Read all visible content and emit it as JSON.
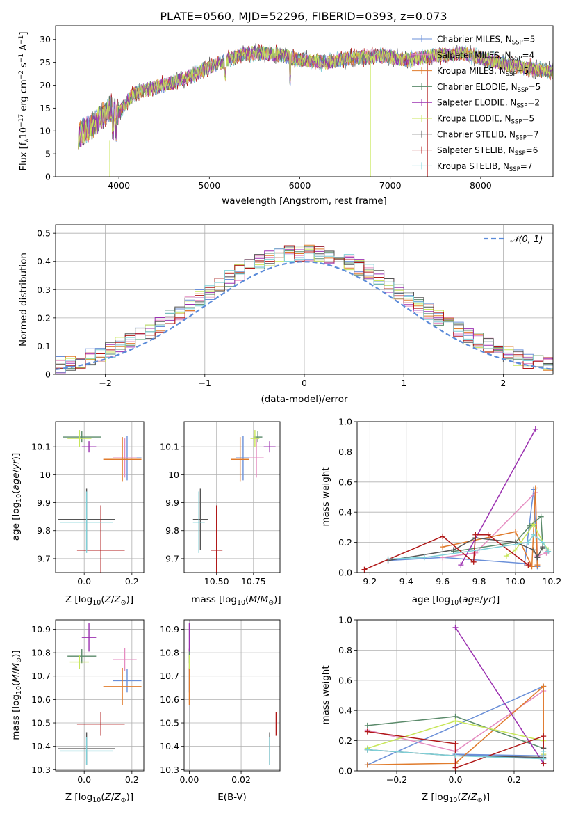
{
  "title": "PLATE=0560, MJD=52296, FIBERID=0393, z=0.073",
  "models": [
    {
      "name": "Chabrier MILES",
      "nssp": "5",
      "color": "#6a8fd8"
    },
    {
      "name": "Salpeter MILES",
      "nssp": "4",
      "color": "#e58bc0"
    },
    {
      "name": "Kroupa MILES",
      "nssp": "5",
      "color": "#e07b2c"
    },
    {
      "name": "Chabrier ELODIE",
      "nssp": "5",
      "color": "#5a8a6a"
    },
    {
      "name": "Salpeter ELODIE",
      "nssp": "2",
      "color": "#9b30b0"
    },
    {
      "name": "Kroupa ELODIE",
      "nssp": "5",
      "color": "#c8e65a"
    },
    {
      "name": "Chabrier STELIB",
      "nssp": "7",
      "color": "#555555"
    },
    {
      "name": "Salpeter STELIB",
      "nssp": "6",
      "color": "#b01818"
    },
    {
      "name": "Kroupa STELIB",
      "nssp": "7",
      "color": "#7fd0d8"
    }
  ],
  "chart_data": [
    {
      "id": "spectrum",
      "type": "line",
      "xlabel": "wavelength [Angstrom, rest frame]",
      "ylabel": "Flux [f_λ 10^-17 erg cm^-2 s^-1 A^-1]",
      "xlim": [
        3300,
        8800
      ],
      "ylim": [
        0,
        33
      ],
      "xticks": [
        4000,
        5000,
        6000,
        7000,
        8000
      ],
      "yticks": [
        0,
        5,
        10,
        15,
        20,
        25,
        30
      ],
      "grid": false,
      "continuum_x": [
        3550,
        3700,
        3900,
        4000,
        4150,
        4300,
        4500,
        4800,
        5000,
        5200,
        5400,
        5600,
        5800,
        6000,
        6300,
        6600,
        6900,
        7200,
        7500,
        7800,
        8100,
        8400,
        8800
      ],
      "continuum_y": [
        9,
        11,
        15,
        14,
        18,
        19,
        20,
        22,
        24,
        25.5,
        27,
        27,
        26.5,
        25.5,
        25,
        26,
        26.5,
        25.5,
        26.5,
        27,
        25.5,
        24,
        23
      ],
      "legend": "upper right"
    },
    {
      "id": "residuals",
      "type": "histogram",
      "xlabel": "(data-model)/error",
      "ylabel": "Normed distribution",
      "xlim": [
        -2.5,
        2.5
      ],
      "ylim": [
        0,
        0.53
      ],
      "xticks": [
        -2,
        -1,
        0,
        1,
        2
      ],
      "yticks": [
        0,
        0.1,
        0.2,
        0.3,
        0.4,
        0.5
      ],
      "grid": true,
      "reference": "N(0,1)",
      "legend": "upper right",
      "bin_width": 0.1
    },
    {
      "id": "age_vs_Z",
      "type": "errorbar",
      "xlabel": "Z [log10(Z/Z_sun)]",
      "ylabel": "age  [log10(age/yr)]",
      "xlim": [
        -0.12,
        0.25
      ],
      "ylim": [
        9.65,
        10.19
      ],
      "xticks": [
        0.0,
        0.2
      ],
      "xticklabels": [
        "0.0",
        "0.2"
      ],
      "yticks": [
        9.7,
        9.8,
        9.9,
        10.0,
        10.1
      ],
      "grid": true,
      "points": [
        {
          "model": 0,
          "x": 0.18,
          "y": 10.06,
          "xerr": 0.06,
          "yerr": 0.08
        },
        {
          "model": 1,
          "x": 0.17,
          "y": 10.06,
          "xerr": 0.05,
          "yerr": 0.07
        },
        {
          "model": 2,
          "x": 0.16,
          "y": 10.055,
          "xerr": 0.08,
          "yerr": 0.08
        },
        {
          "model": 3,
          "x": -0.01,
          "y": 10.135,
          "xerr": 0.08,
          "yerr": 0.02
        },
        {
          "model": 4,
          "x": 0.02,
          "y": 10.1,
          "xerr": 0.03,
          "yerr": 0.02
        },
        {
          "model": 5,
          "x": -0.02,
          "y": 10.13,
          "xerr": 0.05,
          "yerr": 0.03
        },
        {
          "model": 6,
          "x": 0.01,
          "y": 9.84,
          "xerr": 0.12,
          "yerr": 0.11
        },
        {
          "model": 7,
          "x": 0.07,
          "y": 9.73,
          "xerr": 0.1,
          "yerr": 0.16
        },
        {
          "model": 8,
          "x": 0.01,
          "y": 9.83,
          "xerr": 0.11,
          "yerr": 0.11
        }
      ]
    },
    {
      "id": "age_vs_mass",
      "type": "errorbar",
      "xlabel": "mass [log10(M/M_sun)]",
      "ylabel": "",
      "xlim": [
        10.28,
        10.93
      ],
      "ylim": [
        9.65,
        10.19
      ],
      "xticks": [
        10.5,
        10.75
      ],
      "xticklabels": [
        "10.50",
        "10.75"
      ],
      "yticks": [
        9.7,
        9.8,
        9.9,
        10.0,
        10.1
      ],
      "grid": true,
      "points": [
        {
          "model": 0,
          "x": 10.68,
          "y": 10.06,
          "xerr": 0.05,
          "yerr": 0.08
        },
        {
          "model": 1,
          "x": 10.77,
          "y": 10.06,
          "xerr": 0.05,
          "yerr": 0.07
        },
        {
          "model": 2,
          "x": 10.66,
          "y": 10.055,
          "xerr": 0.06,
          "yerr": 0.08
        },
        {
          "model": 3,
          "x": 10.78,
          "y": 10.135,
          "xerr": 0.03,
          "yerr": 0.02
        },
        {
          "model": 4,
          "x": 10.86,
          "y": 10.1,
          "xerr": 0.04,
          "yerr": 0.02
        },
        {
          "model": 5,
          "x": 10.76,
          "y": 10.13,
          "xerr": 0.03,
          "yerr": 0.03
        },
        {
          "model": 6,
          "x": 10.39,
          "y": 9.84,
          "xerr": 0.05,
          "yerr": 0.11
        },
        {
          "model": 7,
          "x": 10.5,
          "y": 9.73,
          "xerr": 0.04,
          "yerr": 0.16
        },
        {
          "model": 8,
          "x": 10.38,
          "y": 9.83,
          "xerr": 0.04,
          "yerr": 0.11
        }
      ]
    },
    {
      "id": "weight_vs_age",
      "type": "line",
      "xlabel": "age  [log10(age/yr)]",
      "ylabel": "mass weight",
      "xlim": [
        9.13,
        10.21
      ],
      "ylim": [
        0,
        1
      ],
      "xticks": [
        9.2,
        9.4,
        9.6,
        9.8,
        10.0,
        10.2
      ],
      "xticklabels": [
        "9.2",
        "9.4",
        "9.6",
        "9.8",
        "10.0",
        "10.2"
      ],
      "yticks": [
        0,
        0.2,
        0.4,
        0.6,
        0.8,
        1.0
      ],
      "yticklabels": [
        "0.0",
        "0.2",
        "0.4",
        "0.6",
        "0.8",
        "1.0"
      ],
      "grid": true,
      "series": [
        {
          "model": 0,
          "x": [
            9.3,
            9.6,
            10.05,
            10.1,
            10.12
          ],
          "y": [
            0.08,
            0.1,
            0.06,
            0.55,
            0.04
          ]
        },
        {
          "model": 1,
          "x": [
            9.6,
            9.78,
            10.11,
            10.12,
            10.17
          ],
          "y": [
            0.1,
            0.13,
            0.53,
            0.11,
            0.13
          ]
        },
        {
          "model": 2,
          "x": [
            9.6,
            10.0,
            10.09,
            10.11,
            10.12
          ],
          "y": [
            0.17,
            0.27,
            0.04,
            0.56,
            0.05
          ]
        },
        {
          "model": 3,
          "x": [
            9.66,
            10.0,
            10.08,
            10.14,
            10.15
          ],
          "y": [
            0.14,
            0.2,
            0.31,
            0.37,
            0.16
          ]
        },
        {
          "model": 4,
          "x": [
            9.7,
            10.11
          ],
          "y": [
            0.05,
            0.95
          ]
        },
        {
          "model": 5,
          "x": [
            9.95,
            10.0,
            10.1,
            10.15,
            10.18
          ],
          "y": [
            0.11,
            0.15,
            0.32,
            0.2,
            0.15
          ]
        },
        {
          "model": 6,
          "x": [
            9.3,
            9.66,
            9.78,
            10.0,
            10.1,
            10.12,
            10.15
          ],
          "y": [
            0.08,
            0.15,
            0.23,
            0.2,
            0.15,
            0.1,
            0.17
          ]
        },
        {
          "model": 7,
          "x": [
            9.17,
            9.6,
            9.77,
            9.78,
            9.85,
            10.07
          ],
          "y": [
            0.02,
            0.24,
            0.07,
            0.25,
            0.25,
            0.05
          ]
        },
        {
          "model": 8,
          "x": [
            9.3,
            9.5,
            9.8,
            10.07,
            10.1,
            10.15,
            10.18
          ],
          "y": [
            0.09,
            0.1,
            0.15,
            0.2,
            0.25,
            0.2,
            0.14
          ]
        }
      ]
    },
    {
      "id": "mass_vs_Z",
      "type": "errorbar",
      "xlabel": "Z [log10(Z/Z_sun)]",
      "ylabel": "mass [log10(M/M_sun)]",
      "xlim": [
        -0.12,
        0.25
      ],
      "ylim": [
        10.295,
        10.94
      ],
      "xticks": [
        0.0,
        0.2
      ],
      "xticklabels": [
        "0.0",
        "0.2"
      ],
      "yticks": [
        10.3,
        10.4,
        10.5,
        10.6,
        10.7,
        10.8,
        10.9
      ],
      "grid": true,
      "points": [
        {
          "model": 0,
          "x": 0.18,
          "y": 10.68,
          "xerr": 0.06,
          "yerr": 0.05
        },
        {
          "model": 1,
          "x": 0.17,
          "y": 10.77,
          "xerr": 0.05,
          "yerr": 0.05
        },
        {
          "model": 2,
          "x": 0.16,
          "y": 10.655,
          "xerr": 0.08,
          "yerr": 0.08
        },
        {
          "model": 3,
          "x": -0.01,
          "y": 10.785,
          "xerr": 0.06,
          "yerr": 0.03
        },
        {
          "model": 4,
          "x": 0.02,
          "y": 10.865,
          "xerr": 0.03,
          "yerr": 0.06
        },
        {
          "model": 5,
          "x": -0.02,
          "y": 10.76,
          "xerr": 0.04,
          "yerr": 0.03
        },
        {
          "model": 6,
          "x": 0.01,
          "y": 10.39,
          "xerr": 0.12,
          "yerr": 0.07
        },
        {
          "model": 7,
          "x": 0.07,
          "y": 10.495,
          "xerr": 0.1,
          "yerr": 0.05
        },
        {
          "model": 8,
          "x": 0.01,
          "y": 10.38,
          "xerr": 0.11,
          "yerr": 0.06
        }
      ]
    },
    {
      "id": "mass_vs_ebv",
      "type": "errorbar",
      "xlabel": "E(B-V)",
      "ylabel": "",
      "xlim": [
        -0.002,
        0.035
      ],
      "ylim": [
        10.295,
        10.94
      ],
      "xticks": [
        0.0,
        0.02
      ],
      "xticklabels": [
        "0.00",
        "0.02"
      ],
      "yticks": [
        10.3,
        10.4,
        10.5,
        10.6,
        10.7,
        10.8,
        10.9
      ],
      "grid": true,
      "points": [
        {
          "model": 0,
          "x": 0.0,
          "y": 10.68,
          "xerr": 0,
          "yerr": 0.05
        },
        {
          "model": 1,
          "x": 0.0,
          "y": 10.77,
          "xerr": 0,
          "yerr": 0.05
        },
        {
          "model": 2,
          "x": 0.0,
          "y": 10.655,
          "xerr": 0,
          "yerr": 0.08
        },
        {
          "model": 3,
          "x": 0.0,
          "y": 10.785,
          "xerr": 0,
          "yerr": 0.03
        },
        {
          "model": 4,
          "x": 0.0,
          "y": 10.865,
          "xerr": 0,
          "yerr": 0.06
        },
        {
          "model": 5,
          "x": 0.0,
          "y": 10.76,
          "xerr": 0,
          "yerr": 0.03
        },
        {
          "model": 6,
          "x": 0.031,
          "y": 10.39,
          "xerr": 0,
          "yerr": 0.07
        },
        {
          "model": 7,
          "x": 0.0335,
          "y": 10.495,
          "xerr": 0,
          "yerr": 0.05
        },
        {
          "model": 8,
          "x": 0.031,
          "y": 10.38,
          "xerr": 0,
          "yerr": 0.06
        }
      ]
    },
    {
      "id": "weight_vs_Z",
      "type": "line",
      "xlabel": "Z [log10(Z/Z_sun)]",
      "ylabel": "mass weight",
      "xlim": [
        -0.335,
        0.335
      ],
      "ylim": [
        0,
        1
      ],
      "xticks": [
        -0.2,
        0.0,
        0.2
      ],
      "xticklabels": [
        "−0.2",
        "0.0",
        "0.2"
      ],
      "yticks": [
        0,
        0.2,
        0.4,
        0.6,
        0.8,
        1.0
      ],
      "yticklabels": [
        "0.0",
        "0.2",
        "0.4",
        "0.6",
        "0.8",
        "1.0"
      ],
      "grid": true,
      "series": [
        {
          "model": 0,
          "x": [
            -0.3,
            0.3,
            0.3,
            0.0,
            0.3
          ],
          "y": [
            0.04,
            0.56,
            0.1,
            0.11,
            0.08
          ]
        },
        {
          "model": 1,
          "x": [
            -0.3,
            0.0,
            0.3,
            0.3
          ],
          "y": [
            0.27,
            0.13,
            0.53,
            0.11
          ]
        },
        {
          "model": 2,
          "x": [
            -0.3,
            0.0,
            0.3,
            0.3
          ],
          "y": [
            0.04,
            0.05,
            0.56,
            0.05
          ]
        },
        {
          "model": 3,
          "x": [
            -0.3,
            0.0,
            0.3,
            0.3
          ],
          "y": [
            0.3,
            0.36,
            0.15,
            0.1
          ]
        },
        {
          "model": 4,
          "x": [
            0.0,
            0.3
          ],
          "y": [
            0.95,
            0.05
          ]
        },
        {
          "model": 5,
          "x": [
            -0.3,
            0.0,
            0.3,
            0.3
          ],
          "y": [
            0.15,
            0.33,
            0.2,
            0.11
          ]
        },
        {
          "model": 6,
          "x": [
            -0.3,
            0.0,
            0.3,
            0.3
          ],
          "y": [
            0.14,
            0.1,
            0.09,
            0.15
          ]
        },
        {
          "model": 7,
          "x": [
            -0.3,
            0.0,
            0.0,
            0.3,
            0.3
          ],
          "y": [
            0.26,
            0.18,
            0.02,
            0.23,
            0.05
          ]
        },
        {
          "model": 8,
          "x": [
            -0.3,
            0.0,
            0.3,
            0.3
          ],
          "y": [
            0.14,
            0.1,
            0.08,
            0.13
          ]
        }
      ]
    }
  ]
}
